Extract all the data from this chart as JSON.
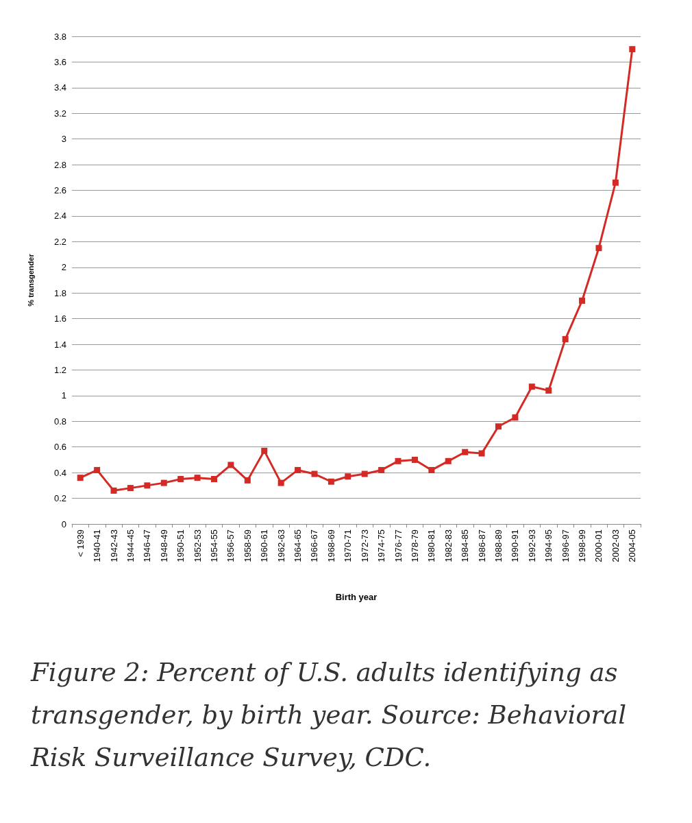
{
  "chart_data": {
    "type": "line",
    "xlabel": "Birth year",
    "ylabel": "% transgender",
    "categories": [
      "< 1939",
      "1940-41",
      "1942-43",
      "1944-45",
      "1946-47",
      "1948-49",
      "1950-51",
      "1952-53",
      "1954-55",
      "1956-57",
      "1958-59",
      "1960-61",
      "1962-63",
      "1964-65",
      "1966-67",
      "1968-69",
      "1970-71",
      "1972-73",
      "1974-75",
      "1976-77",
      "1978-79",
      "1980-81",
      "1982-83",
      "1984-85",
      "1986-87",
      "1988-89",
      "1990-91",
      "1992-93",
      "1994-95",
      "1996-97",
      "1998-99",
      "2000-01",
      "2002-03",
      "2004-05"
    ],
    "series": [
      {
        "color": "#d42a26",
        "values": [
          0.36,
          0.42,
          0.26,
          0.28,
          0.3,
          0.32,
          0.35,
          0.36,
          0.35,
          0.46,
          0.34,
          0.57,
          0.32,
          0.42,
          0.39,
          0.33,
          0.37,
          0.39,
          0.42,
          0.49,
          0.5,
          0.42,
          0.49,
          0.56,
          0.55,
          0.76,
          0.83,
          1.07,
          1.04,
          1.44,
          1.74,
          2.15,
          2.66,
          3.7
        ]
      }
    ],
    "ylim": [
      0,
      3.8
    ],
    "yticks": [
      0,
      0.2,
      0.4,
      0.6,
      0.8,
      1,
      1.2,
      1.4,
      1.6,
      1.8,
      2,
      2.2,
      2.4,
      2.6,
      2.8,
      3,
      3.2,
      3.4,
      3.6,
      3.8
    ],
    "grid": "y",
    "marker": "square",
    "line_style": "solid",
    "annotations": [
      "Figure 2: Percent of U.S. adults identifying as transgender, by birth year. Source: Behavioral Risk Surveillance Survey, CDC."
    ]
  }
}
